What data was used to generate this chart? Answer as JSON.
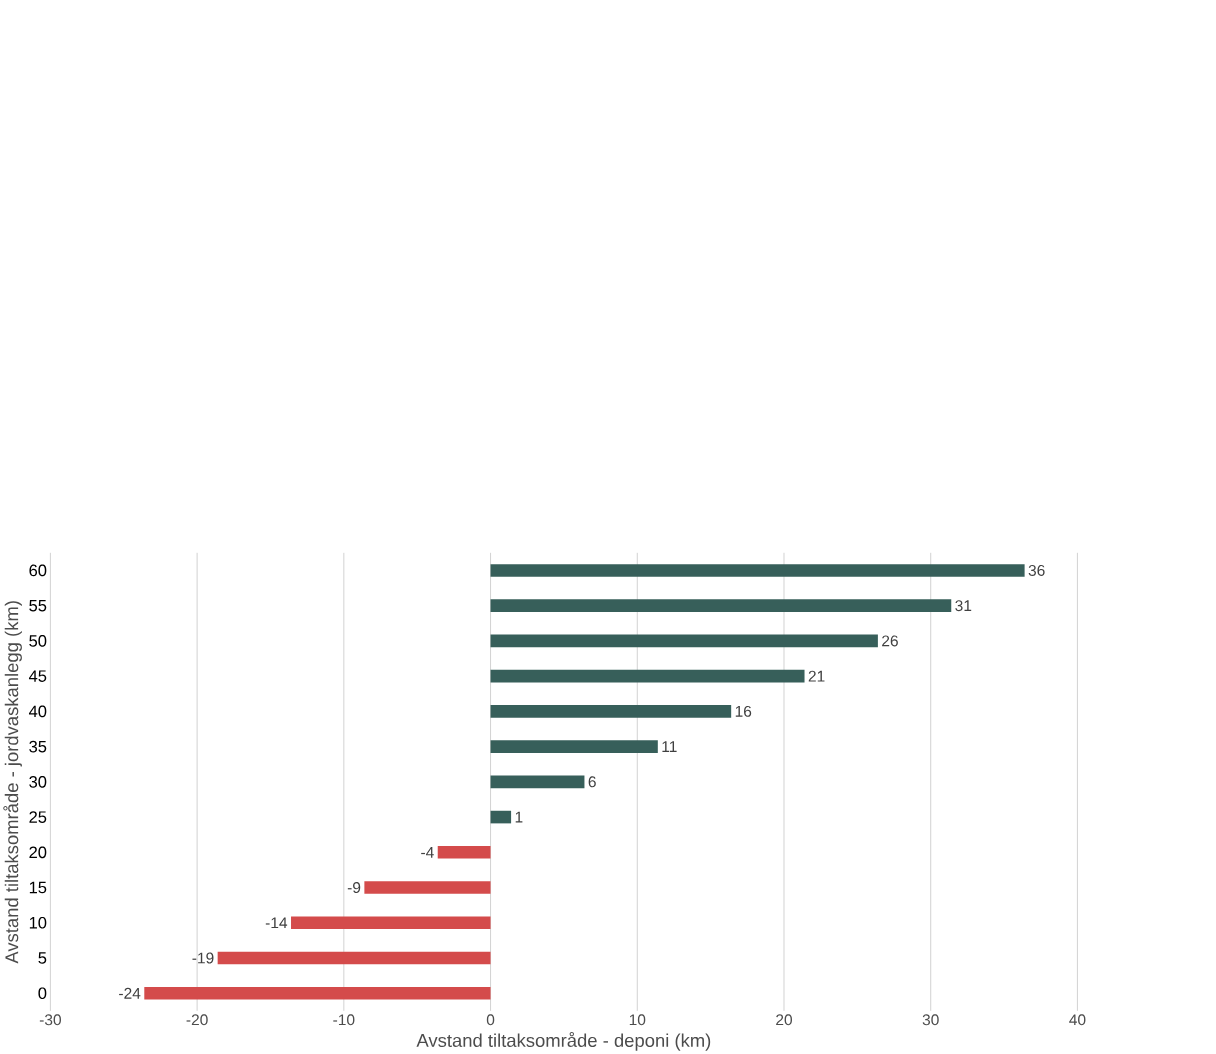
{
  "chart_data": {
    "type": "bar",
    "orientation": "horizontal",
    "xlabel": "Avstand tiltaksområde - deponi (km)",
    "ylabel": "Avstand tiltaksområde - jordvaskanlegg (km)",
    "categories": [
      "60",
      "55",
      "50",
      "45",
      "40",
      "35",
      "30",
      "25",
      "20",
      "15",
      "10",
      "5",
      "0"
    ],
    "values": [
      36.4,
      31.4,
      26.4,
      21.4,
      16.4,
      11.4,
      6.4,
      1.4,
      -3.6,
      -8.6,
      -13.6,
      -18.6,
      -23.6
    ],
    "value_labels": [
      "36",
      "31",
      "26",
      "21",
      "16",
      "11",
      "6",
      "1",
      "-4",
      "-9",
      "-14",
      "-19",
      "-24"
    ],
    "colors": [
      "#375f5a",
      "#375f5a",
      "#375f5a",
      "#375f5a",
      "#375f5a",
      "#375f5a",
      "#375f5a",
      "#375f5a",
      "#d44b4b",
      "#d44b4b",
      "#d44b4b",
      "#d44b4b",
      "#d44b4b"
    ],
    "xlim": [
      -30,
      40
    ],
    "xticks": [
      -30,
      -20,
      -10,
      0,
      10,
      20,
      30,
      40
    ],
    "grid": "x"
  }
}
